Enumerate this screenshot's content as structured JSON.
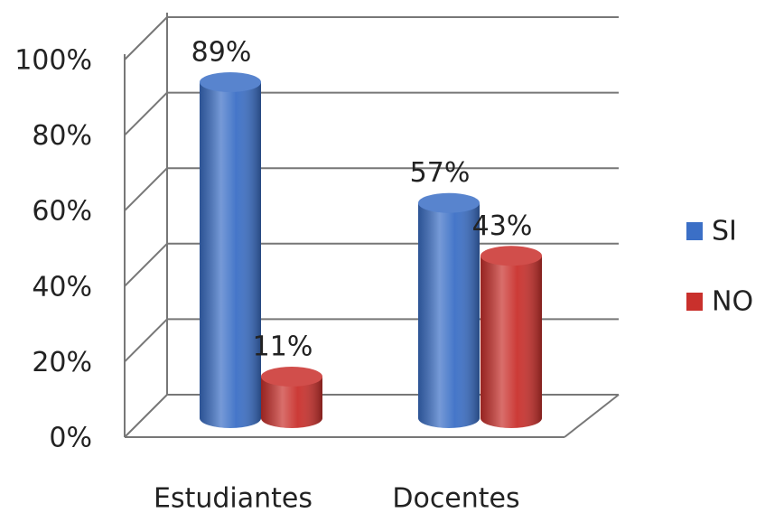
{
  "chart_data": {
    "type": "bar3d",
    "categories": [
      "Estudiantes",
      "Docentes"
    ],
    "series": [
      {
        "name": "SI",
        "color": "#3b6fc6",
        "values": [
          89,
          57
        ],
        "value_labels": [
          "89%",
          "57%"
        ]
      },
      {
        "name": "NO",
        "color": "#c9302c",
        "values": [
          11,
          43
        ],
        "value_labels": [
          "11%",
          "43%"
        ]
      }
    ],
    "ylim": [
      0,
      100
    ],
    "yticks": [
      {
        "value": 0,
        "label": "0%"
      },
      {
        "value": 20,
        "label": "20%"
      },
      {
        "value": 40,
        "label": "40%"
      },
      {
        "value": 60,
        "label": "60%"
      },
      {
        "value": 80,
        "label": "80%"
      },
      {
        "value": 100,
        "label": "100%"
      }
    ],
    "grid": true,
    "legend": "right"
  }
}
